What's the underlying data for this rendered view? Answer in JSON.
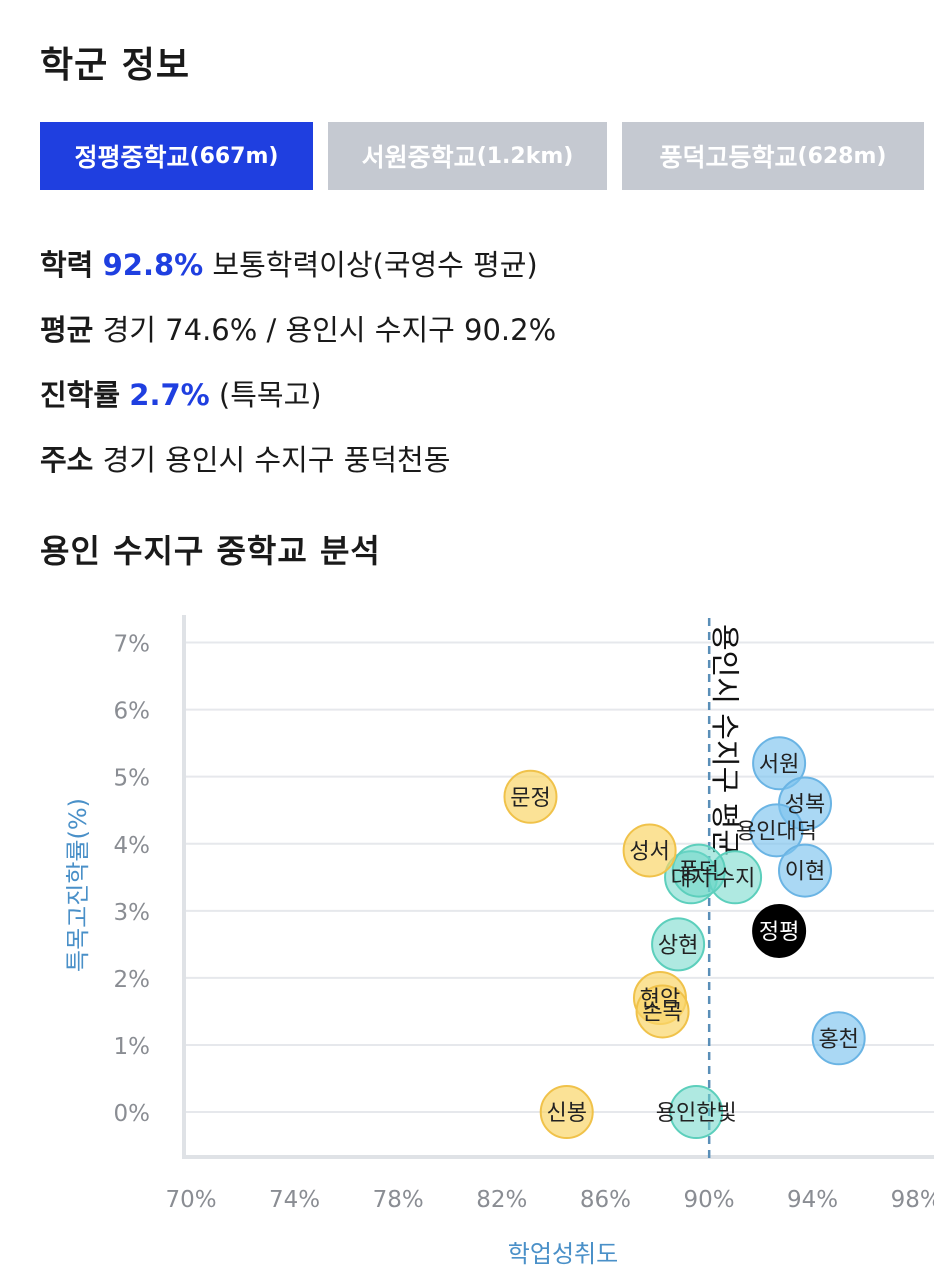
{
  "section_title": "학군 정보",
  "tabs": [
    {
      "name": "정평중학교",
      "distance": "(667m)",
      "active": true
    },
    {
      "name": "서원중학교",
      "distance": "(1.2km)",
      "active": false
    },
    {
      "name": "풍덕고등학교",
      "distance": "(628m)",
      "active": false
    }
  ],
  "info": {
    "achievement_label": "학력",
    "achievement_value": "92.8%",
    "achievement_desc": " 보통학력이상(국영수 평균)",
    "average_label": "평균",
    "average_text": " 경기 74.6% / 용인시 수지구 90.2%",
    "advancement_label": "진학률",
    "advancement_value": "2.7%",
    "advancement_desc": " (특목고)",
    "address_label": "주소",
    "address_text": " 경기 용인시 수지구 풍덕천동"
  },
  "analysis_title": "용인 수지구 중학교 분석",
  "colors": {
    "accent": "#1f3fe0",
    "tab_inactive": "#c5c9d1",
    "axis_label": "#4a90c8"
  },
  "chart_data": {
    "type": "scatter",
    "xlabel": "학업성취도",
    "ylabel": "특목고진학률(%)",
    "xlim": [
      70,
      100
    ],
    "ylim": [
      -0.7,
      7.5
    ],
    "xticks": [
      70,
      74,
      78,
      82,
      86,
      90,
      94,
      98
    ],
    "xtick_labels": [
      "70%",
      "74%",
      "78%",
      "82%",
      "86%",
      "90%",
      "94%",
      "98%"
    ],
    "yticks": [
      0,
      1,
      2,
      3,
      4,
      5,
      6,
      7
    ],
    "ytick_labels": [
      "0%",
      "1%",
      "2%",
      "3%",
      "4%",
      "5%",
      "6%",
      "7%"
    ],
    "grid": true,
    "reference_line": {
      "x": 90.2,
      "label": "용인시 수지구 평균"
    },
    "points": [
      {
        "label": "서원",
        "x": 92.9,
        "y": 5.2,
        "group": "above"
      },
      {
        "label": "성복",
        "x": 93.9,
        "y": 4.6,
        "group": "above"
      },
      {
        "label": "용인대덕",
        "x": 92.8,
        "y": 4.2,
        "group": "above"
      },
      {
        "label": "이현",
        "x": 93.9,
        "y": 3.6,
        "group": "above"
      },
      {
        "label": "홍천",
        "x": 95.2,
        "y": 1.1,
        "group": "above"
      },
      {
        "label": "문정",
        "x": 83.3,
        "y": 4.7,
        "group": "below"
      },
      {
        "label": "성서",
        "x": 87.9,
        "y": 3.9,
        "group": "below"
      },
      {
        "label": "현암",
        "x": 88.3,
        "y": 1.7,
        "group": "below"
      },
      {
        "label": "손곡",
        "x": 88.4,
        "y": 1.5,
        "group": "below"
      },
      {
        "label": "신봉",
        "x": 84.7,
        "y": 0.0,
        "group": "below"
      },
      {
        "label": "대지",
        "x": 89.5,
        "y": 3.5,
        "group": "middle"
      },
      {
        "label": "수지",
        "x": 91.2,
        "y": 3.5,
        "group": "middle"
      },
      {
        "label": "풍덕",
        "x": 89.8,
        "y": 3.6,
        "group": "middle"
      },
      {
        "label": "상현",
        "x": 89.0,
        "y": 2.5,
        "group": "middle"
      },
      {
        "label": "용인한빛",
        "x": 89.7,
        "y": 0.0,
        "group": "middle"
      },
      {
        "label": "정평",
        "x": 92.9,
        "y": 2.7,
        "group": "selected"
      }
    ]
  }
}
